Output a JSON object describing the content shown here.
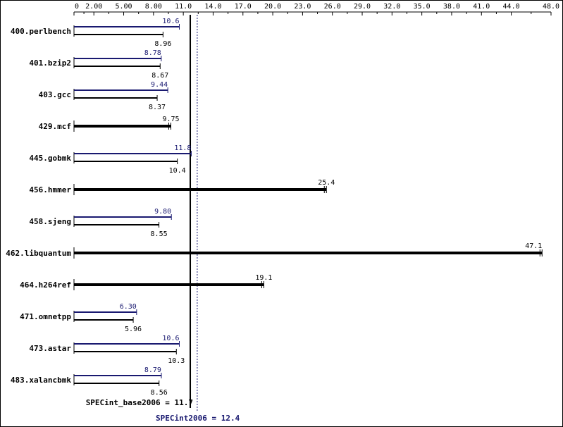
{
  "chart_data": {
    "type": "bar",
    "orientation": "horizontal",
    "x_ticks": [
      "0",
      "2.00",
      "5.00",
      "8.00",
      "11.0",
      "14.0",
      "17.0",
      "20.0",
      "23.0",
      "26.0",
      "29.0",
      "32.0",
      "35.0",
      "38.0",
      "41.0",
      "44.0",
      "48.0"
    ],
    "x_tick_values": [
      0,
      2,
      5,
      8,
      11,
      14,
      17,
      20,
      23,
      26,
      29,
      32,
      35,
      38,
      41,
      44,
      48
    ],
    "xlim": [
      0,
      48
    ],
    "grid": false,
    "categories": [
      "400.perlbench",
      "401.bzip2",
      "403.gcc",
      "429.mcf",
      "445.gobmk",
      "456.hmmer",
      "458.sjeng",
      "462.libquantum",
      "464.h264ref",
      "471.omnetpp",
      "473.astar",
      "483.xalancbmk"
    ],
    "benchmarks": [
      {
        "name": "400.perlbench",
        "peak": 10.6,
        "peak_label": "10.6",
        "base": 8.96,
        "base_label": "8.96"
      },
      {
        "name": "401.bzip2",
        "peak": 8.78,
        "peak_label": "8.78",
        "base": 8.67,
        "base_label": "8.67"
      },
      {
        "name": "403.gcc",
        "peak": 9.44,
        "peak_label": "9.44",
        "base": 8.37,
        "base_label": "8.37"
      },
      {
        "name": "429.mcf",
        "peak": null,
        "peak_label": "",
        "base": 9.75,
        "base_label": "9.75"
      },
      {
        "name": "445.gobmk",
        "peak": 11.8,
        "peak_label": "11.8",
        "base": 10.4,
        "base_label": "10.4"
      },
      {
        "name": "456.hmmer",
        "peak": null,
        "peak_label": "",
        "base": 25.4,
        "base_label": "25.4"
      },
      {
        "name": "458.sjeng",
        "peak": 9.8,
        "peak_label": "9.80",
        "base": 8.55,
        "base_label": "8.55"
      },
      {
        "name": "462.libquantum",
        "peak": null,
        "peak_label": "",
        "base": 47.1,
        "base_label": "47.1"
      },
      {
        "name": "464.h264ref",
        "peak": null,
        "peak_label": "",
        "base": 19.1,
        "base_label": "19.1"
      },
      {
        "name": "471.omnetpp",
        "peak": 6.3,
        "peak_label": "6.30",
        "base": 5.96,
        "base_label": "5.96"
      },
      {
        "name": "473.astar",
        "peak": 10.6,
        "peak_label": "10.6",
        "base": 10.3,
        "base_label": "10.3"
      },
      {
        "name": "483.xalancbmk",
        "peak": 8.79,
        "peak_label": "8.79",
        "base": 8.56,
        "base_label": "8.56"
      }
    ],
    "reference_lines": [
      {
        "label": "SPECint_base2006 = 11.7",
        "value": 11.7,
        "style": "solid",
        "color": "#000000"
      },
      {
        "label": "SPECint2006 = 12.4",
        "value": 12.4,
        "style": "dotted",
        "color": "#191970"
      }
    ],
    "colors": {
      "base": "#000000",
      "peak": "#191970"
    }
  }
}
